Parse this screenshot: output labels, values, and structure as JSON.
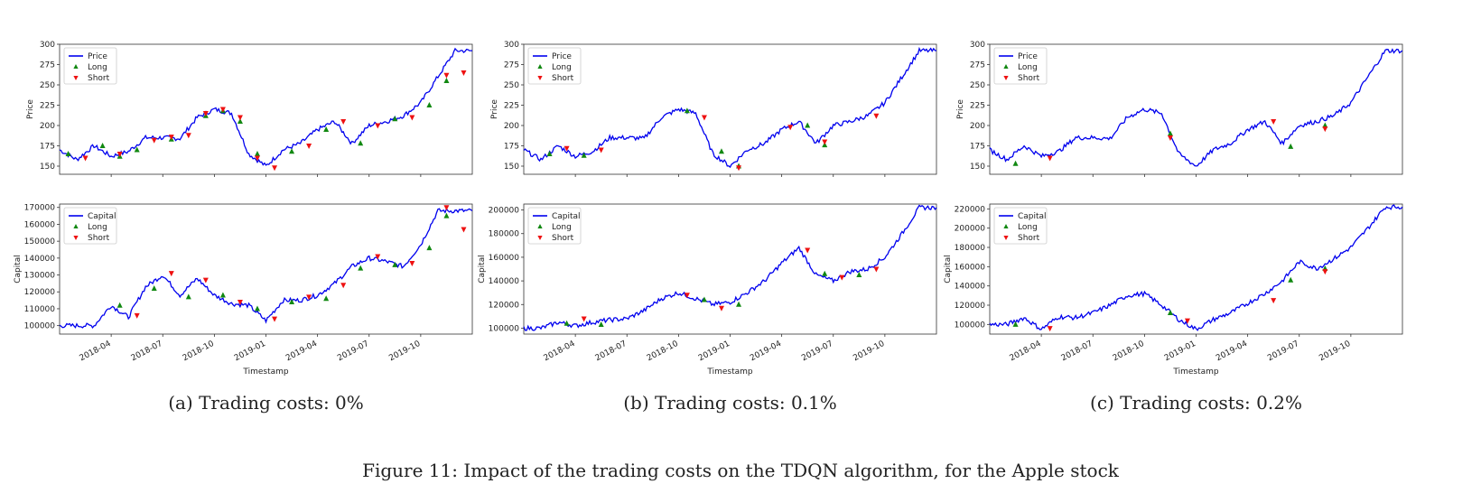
{
  "figure_caption": "Figure 11: Impact of the trading costs on the TDQN algorithm, for the Apple stock",
  "colors": {
    "line": "#0000ee",
    "long": "#118811",
    "short": "#ee1111"
  },
  "x_tick_labels": [
    "2018-04",
    "2018-07",
    "2018-10",
    "2019-01",
    "2019-04",
    "2019-07",
    "2019-10"
  ],
  "chart_data": [
    {
      "panel": "a",
      "caption": "(a) Trading costs: 0%",
      "top": {
        "type": "line",
        "ylabel": "Price",
        "ylim": [
          140,
          300
        ],
        "yticks": [
          150,
          175,
          200,
          225,
          250,
          275,
          300
        ],
        "legend": {
          "placement": "top-left",
          "entries": [
            "Price",
            "Long",
            "Short"
          ]
        },
        "x": [
          "2018-01",
          "2018-02",
          "2018-03",
          "2018-04",
          "2018-05",
          "2018-06",
          "2018-07",
          "2018-08",
          "2018-09",
          "2018-10",
          "2018-11",
          "2018-12",
          "2019-01",
          "2019-02",
          "2019-03",
          "2019-04",
          "2019-05",
          "2019-06",
          "2019-07",
          "2019-08",
          "2019-09",
          "2019-10",
          "2019-11",
          "2019-12"
        ],
        "series": [
          {
            "values": [
              170,
              158,
              175,
              162,
              168,
              185,
              185,
              184,
              210,
              220,
              215,
              165,
              150,
              170,
              178,
              195,
              205,
              178,
              200,
              205,
              212,
              228,
              260,
              292
            ]
          }
        ],
        "long": [
          [
            "2018-01",
            165
          ],
          [
            "2018-03",
            175
          ],
          [
            "2018-04",
            162
          ],
          [
            "2018-05",
            170
          ],
          [
            "2018-07",
            183
          ],
          [
            "2018-09",
            212
          ],
          [
            "2018-10",
            218
          ],
          [
            "2018-11",
            205
          ],
          [
            "2018-12",
            165
          ],
          [
            "2019-02",
            168
          ],
          [
            "2019-04",
            195
          ],
          [
            "2019-06",
            178
          ],
          [
            "2019-08",
            208
          ],
          [
            "2019-10",
            225
          ],
          [
            "2019-11",
            255
          ]
        ],
        "short": [
          [
            "2018-02",
            160
          ],
          [
            "2018-04",
            165
          ],
          [
            "2018-06",
            182
          ],
          [
            "2018-07",
            186
          ],
          [
            "2018-08",
            188
          ],
          [
            "2018-09",
            215
          ],
          [
            "2018-10",
            220
          ],
          [
            "2018-11",
            210
          ],
          [
            "2018-12",
            160
          ],
          [
            "2019-01",
            148
          ],
          [
            "2019-03",
            175
          ],
          [
            "2019-05",
            205
          ],
          [
            "2019-07",
            200
          ],
          [
            "2019-09",
            210
          ],
          [
            "2019-11",
            262
          ],
          [
            "2019-12",
            265
          ]
        ]
      },
      "bottom": {
        "type": "line",
        "ylabel": "Capital",
        "xlabel": "Timestamp",
        "ylim": [
          95000,
          172000
        ],
        "yticks": [
          100000,
          110000,
          120000,
          130000,
          140000,
          150000,
          160000,
          170000
        ],
        "legend": {
          "placement": "top-left",
          "entries": [
            "Capital",
            "Long",
            "Short"
          ]
        },
        "x": [
          "2018-01",
          "2018-02",
          "2018-03",
          "2018-04",
          "2018-05",
          "2018-06",
          "2018-07",
          "2018-08",
          "2018-09",
          "2018-10",
          "2018-11",
          "2018-12",
          "2019-01",
          "2019-02",
          "2019-03",
          "2019-04",
          "2019-05",
          "2019-06",
          "2019-07",
          "2019-08",
          "2019-09",
          "2019-10",
          "2019-11",
          "2019-12"
        ],
        "series": [
          {
            "values": [
              100000,
              100000,
              100000,
              112000,
              105000,
              123000,
              130000,
              118000,
              128000,
              118000,
              113000,
              112000,
              103000,
              115000,
              115000,
              118000,
              125000,
              135000,
              140000,
              138000,
              135000,
              148000,
              168000,
              168000
            ]
          }
        ],
        "long": [
          [
            "2018-04",
            112000
          ],
          [
            "2018-06",
            122000
          ],
          [
            "2018-08",
            117000
          ],
          [
            "2018-10",
            118000
          ],
          [
            "2018-12",
            110000
          ],
          [
            "2019-02",
            114000
          ],
          [
            "2019-04",
            116000
          ],
          [
            "2019-06",
            134000
          ],
          [
            "2019-08",
            136000
          ],
          [
            "2019-10",
            146000
          ],
          [
            "2019-11",
            165000
          ]
        ],
        "short": [
          [
            "2018-05",
            106000
          ],
          [
            "2018-07",
            131000
          ],
          [
            "2018-09",
            127000
          ],
          [
            "2018-11",
            114000
          ],
          [
            "2019-01",
            104000
          ],
          [
            "2019-03",
            117000
          ],
          [
            "2019-05",
            124000
          ],
          [
            "2019-07",
            141000
          ],
          [
            "2019-09",
            137000
          ],
          [
            "2019-11",
            170000
          ],
          [
            "2019-12",
            157000
          ]
        ]
      }
    },
    {
      "panel": "b",
      "caption": "(b) Trading costs: 0.1%",
      "top": {
        "type": "line",
        "ylabel": "Price",
        "ylim": [
          140,
          300
        ],
        "yticks": [
          150,
          175,
          200,
          225,
          250,
          275,
          300
        ],
        "legend": {
          "placement": "top-left",
          "entries": [
            "Price",
            "Long",
            "Short"
          ]
        },
        "x": [
          "2018-01",
          "2018-02",
          "2018-03",
          "2018-04",
          "2018-05",
          "2018-06",
          "2018-07",
          "2018-08",
          "2018-09",
          "2018-10",
          "2018-11",
          "2018-12",
          "2019-01",
          "2019-02",
          "2019-03",
          "2019-04",
          "2019-05",
          "2019-06",
          "2019-07",
          "2019-08",
          "2019-09",
          "2019-10",
          "2019-11",
          "2019-12"
        ],
        "series": [
          {
            "values": [
              170,
              158,
              175,
              162,
              168,
              185,
              185,
              184,
              210,
              220,
              215,
              165,
              150,
              170,
              178,
              195,
              205,
              178,
              200,
              205,
              212,
              228,
              260,
              292
            ]
          }
        ],
        "long": [
          [
            "2018-02",
            165
          ],
          [
            "2018-04",
            163
          ],
          [
            "2018-10",
            218
          ],
          [
            "2018-12",
            168
          ],
          [
            "2019-01",
            150
          ],
          [
            "2019-05",
            200
          ],
          [
            "2019-06",
            176
          ]
        ],
        "short": [
          [
            "2018-03",
            172
          ],
          [
            "2018-05",
            170
          ],
          [
            "2018-11",
            210
          ],
          [
            "2019-01",
            148
          ],
          [
            "2019-04",
            198
          ],
          [
            "2019-06",
            180
          ],
          [
            "2019-09",
            212
          ]
        ]
      },
      "bottom": {
        "type": "line",
        "ylabel": "Capital",
        "xlabel": "Timestamp",
        "ylim": [
          95000,
          205000
        ],
        "yticks": [
          100000,
          120000,
          140000,
          160000,
          180000,
          200000
        ],
        "legend": {
          "placement": "top-left",
          "entries": [
            "Capital",
            "Long",
            "Short"
          ]
        },
        "x": [
          "2018-01",
          "2018-02",
          "2018-03",
          "2018-04",
          "2018-05",
          "2018-06",
          "2018-07",
          "2018-08",
          "2018-09",
          "2018-10",
          "2018-11",
          "2018-12",
          "2019-01",
          "2019-02",
          "2019-03",
          "2019-04",
          "2019-05",
          "2019-06",
          "2019-07",
          "2019-08",
          "2019-09",
          "2019-10",
          "2019-11",
          "2019-12"
        ],
        "series": [
          {
            "values": [
              100000,
              100000,
              105000,
              102000,
              105000,
              107000,
              108000,
              115000,
              125000,
              130000,
              125000,
              120000,
              122000,
              130000,
              140000,
              155000,
              168000,
              145000,
              140000,
              148000,
              150000,
              160000,
              180000,
              202000
            ]
          }
        ],
        "long": [
          [
            "2018-03",
            104000
          ],
          [
            "2018-05",
            103000
          ],
          [
            "2018-11",
            124000
          ],
          [
            "2019-01",
            120000
          ],
          [
            "2019-06",
            146000
          ],
          [
            "2019-08",
            145000
          ]
        ],
        "short": [
          [
            "2018-04",
            108000
          ],
          [
            "2018-10",
            128000
          ],
          [
            "2018-12",
            117000
          ],
          [
            "2019-05",
            166000
          ],
          [
            "2019-07",
            143000
          ],
          [
            "2019-09",
            150000
          ]
        ]
      }
    },
    {
      "panel": "c",
      "caption": "(c) Trading costs: 0.2%",
      "top": {
        "type": "line",
        "ylabel": "Price",
        "ylim": [
          140,
          300
        ],
        "yticks": [
          150,
          175,
          200,
          225,
          250,
          275,
          300
        ],
        "legend": {
          "placement": "top-left",
          "entries": [
            "Price",
            "Long",
            "Short"
          ]
        },
        "x": [
          "2018-01",
          "2018-02",
          "2018-03",
          "2018-04",
          "2018-05",
          "2018-06",
          "2018-07",
          "2018-08",
          "2018-09",
          "2018-10",
          "2018-11",
          "2018-12",
          "2019-01",
          "2019-02",
          "2019-03",
          "2019-04",
          "2019-05",
          "2019-06",
          "2019-07",
          "2019-08",
          "2019-09",
          "2019-10",
          "2019-11",
          "2019-12"
        ],
        "series": [
          {
            "values": [
              170,
              158,
              175,
              162,
              168,
              185,
              185,
              184,
              210,
              220,
              215,
              165,
              150,
              170,
              178,
              195,
              205,
              178,
              200,
              205,
              212,
              228,
              260,
              292
            ]
          }
        ],
        "long": [
          [
            "2018-02",
            153
          ],
          [
            "2018-11",
            190
          ],
          [
            "2019-06",
            174
          ],
          [
            "2019-08",
            200
          ]
        ],
        "short": [
          [
            "2018-04",
            160
          ],
          [
            "2018-11",
            185
          ],
          [
            "2019-05",
            205
          ],
          [
            "2019-08",
            196
          ]
        ]
      },
      "bottom": {
        "type": "line",
        "ylabel": "Capital",
        "xlabel": "Timestamp",
        "ylim": [
          90000,
          225000
        ],
        "yticks": [
          100000,
          120000,
          140000,
          160000,
          180000,
          200000,
          220000
        ],
        "legend": {
          "placement": "top-left",
          "entries": [
            "Capital",
            "Long",
            "Short"
          ]
        },
        "x": [
          "2018-01",
          "2018-02",
          "2018-03",
          "2018-04",
          "2018-05",
          "2018-06",
          "2018-07",
          "2018-08",
          "2018-09",
          "2018-10",
          "2018-11",
          "2018-12",
          "2019-01",
          "2019-02",
          "2019-03",
          "2019-04",
          "2019-05",
          "2019-06",
          "2019-07",
          "2019-08",
          "2019-09",
          "2019-10",
          "2019-11",
          "2019-12"
        ],
        "series": [
          {
            "values": [
              100000,
              100000,
              107000,
              95000,
              108000,
              107000,
              112000,
              120000,
              130000,
              132000,
              120000,
              105000,
              95000,
              105000,
              112000,
              122000,
              132000,
              145000,
              165000,
              158000,
              168000,
              180000,
              200000,
              222000
            ]
          }
        ],
        "long": [
          [
            "2018-02",
            100000
          ],
          [
            "2018-11",
            112000
          ],
          [
            "2019-06",
            146000
          ],
          [
            "2019-08",
            158000
          ]
        ],
        "short": [
          [
            "2018-04",
            96000
          ],
          [
            "2018-12",
            104000
          ],
          [
            "2019-05",
            125000
          ],
          [
            "2019-08",
            155000
          ]
        ]
      }
    }
  ]
}
